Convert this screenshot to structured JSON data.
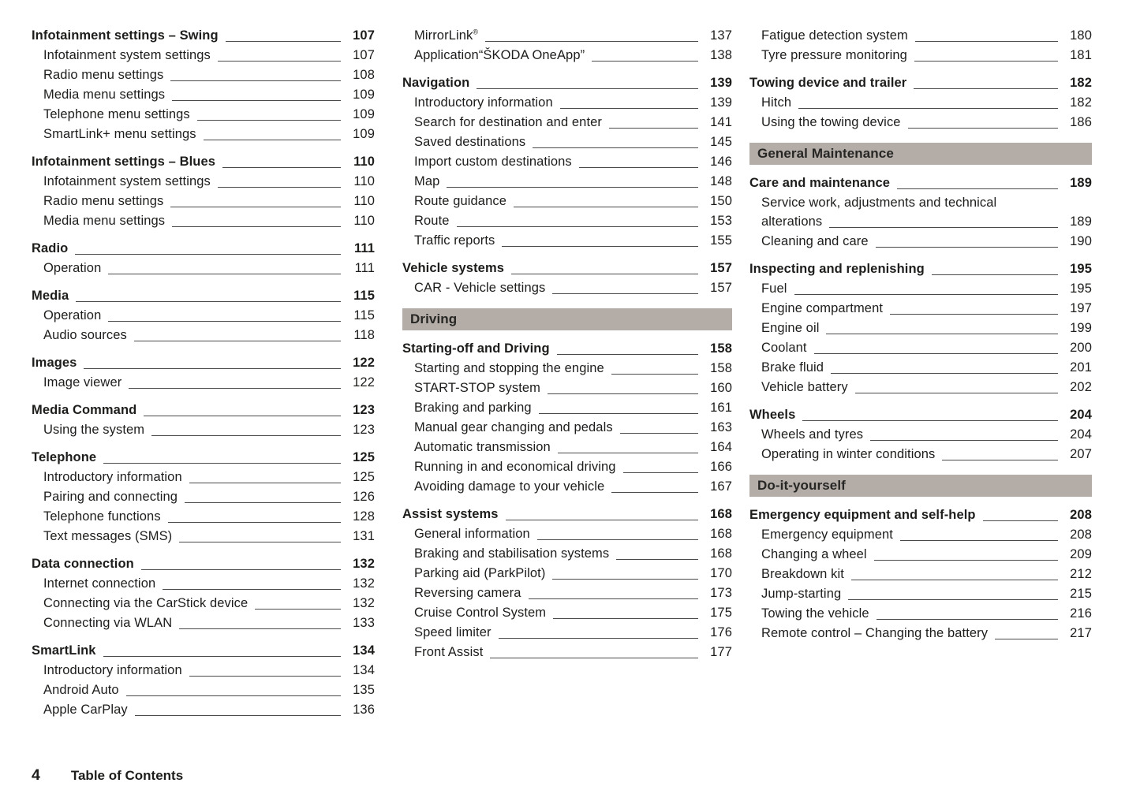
{
  "footer": {
    "page_number": "4",
    "label": "Table of Contents"
  },
  "colors": {
    "banner_bg": "#b3aca7",
    "text": "#1d1d1b"
  },
  "columns": [
    {
      "blocks": [
        {
          "type": "section",
          "header": {
            "label": "Infotainment settings – Swing",
            "page": "107"
          },
          "items": [
            {
              "label": "Infotainment system settings",
              "page": "107"
            },
            {
              "label": "Radio menu settings",
              "page": "108"
            },
            {
              "label": "Media menu settings",
              "page": "109"
            },
            {
              "label": "Telephone menu settings",
              "page": "109"
            },
            {
              "label": "SmartLink+ menu settings",
              "page": "109"
            }
          ]
        },
        {
          "type": "section",
          "header": {
            "label": "Infotainment settings – Blues",
            "page": "110"
          },
          "items": [
            {
              "label": "Infotainment system settings",
              "page": "110"
            },
            {
              "label": "Radio menu settings",
              "page": "110"
            },
            {
              "label": "Media menu settings",
              "page": "110"
            }
          ]
        },
        {
          "type": "section",
          "header": {
            "label": "Radio",
            "page": "111"
          },
          "items": [
            {
              "label": "Operation",
              "page": "111"
            }
          ]
        },
        {
          "type": "section",
          "header": {
            "label": "Media",
            "page": "115"
          },
          "items": [
            {
              "label": "Operation",
              "page": "115"
            },
            {
              "label": "Audio sources",
              "page": "118"
            }
          ]
        },
        {
          "type": "section",
          "header": {
            "label": "Images",
            "page": "122"
          },
          "items": [
            {
              "label": "Image viewer",
              "page": "122"
            }
          ]
        },
        {
          "type": "section",
          "header": {
            "label": "Media Command",
            "page": "123"
          },
          "items": [
            {
              "label": "Using the system",
              "page": "123"
            }
          ]
        },
        {
          "type": "section",
          "header": {
            "label": "Telephone",
            "page": "125"
          },
          "items": [
            {
              "label": "Introductory information",
              "page": "125"
            },
            {
              "label": "Pairing and connecting",
              "page": "126"
            },
            {
              "label": "Telephone functions",
              "page": "128"
            },
            {
              "label": "Text messages (SMS)",
              "page": "131"
            }
          ]
        },
        {
          "type": "section",
          "header": {
            "label": "Data connection",
            "page": "132"
          },
          "items": [
            {
              "label": "Internet connection",
              "page": "132"
            },
            {
              "label": "Connecting via the CarStick device",
              "page": "132"
            },
            {
              "label": "Connecting via WLAN",
              "page": "133"
            }
          ]
        },
        {
          "type": "section",
          "header": {
            "label": "SmartLink",
            "page": "134"
          },
          "items": [
            {
              "label": "Introductory information",
              "page": "134"
            },
            {
              "label": "Android Auto",
              "page": "135"
            },
            {
              "label": "Apple CarPlay",
              "page": "136"
            }
          ]
        }
      ]
    },
    {
      "blocks": [
        {
          "type": "items",
          "items": [
            {
              "label": "MirrorLink",
              "sup": "®",
              "page": "137"
            },
            {
              "label": "Application“ŠKODA OneApp”",
              "page": "138"
            }
          ]
        },
        {
          "type": "section",
          "header": {
            "label": "Navigation",
            "page": "139"
          },
          "items": [
            {
              "label": "Introductory information",
              "page": "139"
            },
            {
              "label": "Search for destination and enter",
              "page": "141"
            },
            {
              "label": "Saved destinations",
              "page": "145"
            },
            {
              "label": "Import custom destinations",
              "page": "146"
            },
            {
              "label": "Map",
              "page": "148"
            },
            {
              "label": "Route guidance",
              "page": "150"
            },
            {
              "label": "Route",
              "page": "153"
            },
            {
              "label": "Traffic reports",
              "page": "155"
            }
          ]
        },
        {
          "type": "section",
          "header": {
            "label": "Vehicle systems",
            "page": "157"
          },
          "items": [
            {
              "label": "CAR - Vehicle settings",
              "page": "157"
            }
          ]
        },
        {
          "type": "banner",
          "label": "Driving"
        },
        {
          "type": "section",
          "header": {
            "label": "Starting-off and Driving",
            "page": "158"
          },
          "items": [
            {
              "label": "Starting and stopping the engine",
              "page": "158"
            },
            {
              "label": "START-STOP system",
              "page": "160"
            },
            {
              "label": "Braking and parking",
              "page": "161"
            },
            {
              "label": "Manual gear changing and pedals",
              "page": "163"
            },
            {
              "label": "Automatic transmission",
              "page": "164"
            },
            {
              "label": "Running in and economical driving",
              "page": "166"
            },
            {
              "label": "Avoiding damage to your vehicle",
              "page": "167"
            }
          ]
        },
        {
          "type": "section",
          "header": {
            "label": "Assist systems",
            "page": "168"
          },
          "items": [
            {
              "label": "General information",
              "page": "168"
            },
            {
              "label": "Braking and stabilisation systems",
              "page": "168"
            },
            {
              "label": "Parking aid (ParkPilot)",
              "page": "170"
            },
            {
              "label": "Reversing camera",
              "page": "173"
            },
            {
              "label": "Cruise Control System",
              "page": "175"
            },
            {
              "label": "Speed limiter",
              "page": "176"
            },
            {
              "label": "Front Assist",
              "page": "177"
            }
          ]
        }
      ]
    },
    {
      "blocks": [
        {
          "type": "items",
          "items": [
            {
              "label": "Fatigue detection system",
              "page": "180"
            },
            {
              "label": "Tyre pressure monitoring",
              "page": "181"
            }
          ]
        },
        {
          "type": "section",
          "header": {
            "label": "Towing device and trailer",
            "page": "182"
          },
          "items": [
            {
              "label": "Hitch",
              "page": "182"
            },
            {
              "label": "Using the towing device",
              "page": "186"
            }
          ]
        },
        {
          "type": "banner",
          "label": "General Maintenance"
        },
        {
          "type": "section",
          "header": {
            "label": "Care and maintenance",
            "page": "189"
          },
          "items": [
            {
              "label": "Service work, adjustments and technical",
              "label2": "alterations",
              "page": "189"
            },
            {
              "label": "Cleaning and care",
              "page": "190"
            }
          ]
        },
        {
          "type": "section",
          "header": {
            "label": "Inspecting and replenishing",
            "page": "195"
          },
          "items": [
            {
              "label": "Fuel",
              "page": "195"
            },
            {
              "label": "Engine compartment",
              "page": "197"
            },
            {
              "label": "Engine oil",
              "page": "199"
            },
            {
              "label": "Coolant",
              "page": "200"
            },
            {
              "label": "Brake fluid",
              "page": "201"
            },
            {
              "label": "Vehicle battery",
              "page": "202"
            }
          ]
        },
        {
          "type": "section",
          "header": {
            "label": "Wheels",
            "page": "204"
          },
          "items": [
            {
              "label": "Wheels and tyres",
              "page": "204"
            },
            {
              "label": "Operating in winter conditions",
              "page": "207"
            }
          ]
        },
        {
          "type": "banner",
          "label": "Do-it-yourself"
        },
        {
          "type": "section",
          "header": {
            "label": "Emergency equipment and self-help",
            "page": "208"
          },
          "items": [
            {
              "label": "Emergency equipment",
              "page": "208"
            },
            {
              "label": "Changing a wheel",
              "page": "209"
            },
            {
              "label": "Breakdown kit",
              "page": "212"
            },
            {
              "label": "Jump-starting",
              "page": "215"
            },
            {
              "label": "Towing the vehicle",
              "page": "216"
            },
            {
              "label": "Remote control – Changing the battery",
              "page": "217"
            }
          ]
        }
      ]
    }
  ]
}
